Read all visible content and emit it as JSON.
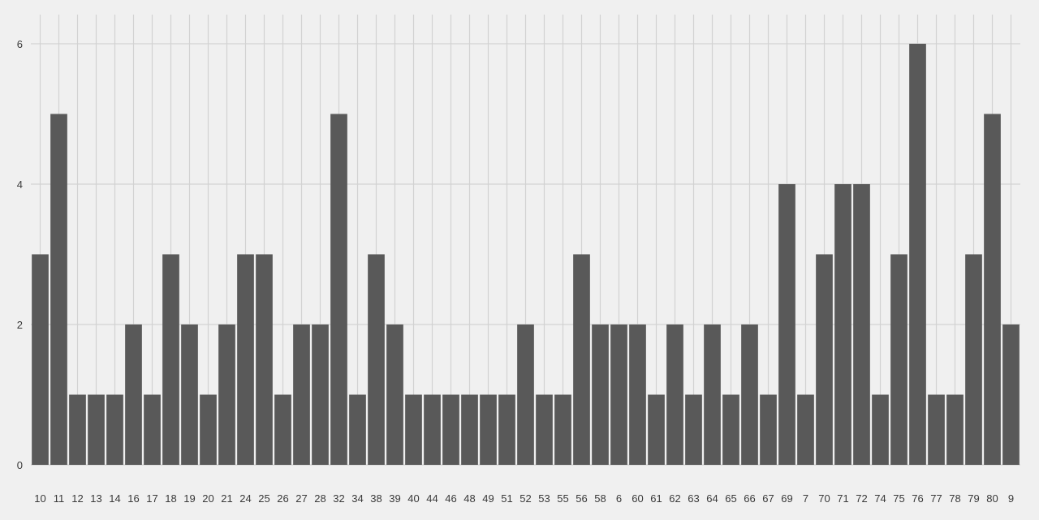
{
  "chart_data": {
    "type": "bar",
    "title": "",
    "xlabel": "",
    "ylabel": "",
    "categories": [
      "10",
      "11",
      "12",
      "13",
      "14",
      "16",
      "17",
      "18",
      "19",
      "20",
      "21",
      "24",
      "25",
      "26",
      "27",
      "28",
      "32",
      "34",
      "38",
      "39",
      "40",
      "44",
      "46",
      "48",
      "49",
      "51",
      "52",
      "53",
      "55",
      "56",
      "58",
      "6",
      "60",
      "61",
      "62",
      "63",
      "64",
      "65",
      "66",
      "67",
      "69",
      "7",
      "70",
      "71",
      "72",
      "74",
      "75",
      "76",
      "77",
      "78",
      "79",
      "80",
      "9"
    ],
    "values": [
      3,
      5,
      1,
      1,
      1,
      2,
      1,
      3,
      2,
      1,
      2,
      3,
      3,
      1,
      2,
      2,
      5,
      1,
      3,
      2,
      1,
      1,
      1,
      1,
      1,
      1,
      2,
      1,
      1,
      3,
      2,
      2,
      2,
      1,
      2,
      1,
      2,
      1,
      2,
      1,
      4,
      1,
      3,
      4,
      4,
      1,
      3,
      6,
      1,
      1,
      3,
      5,
      2
    ],
    "y_ticks": [
      "0",
      "2",
      "4",
      "6"
    ],
    "ylim": [
      0,
      6.3
    ],
    "grid": true,
    "colors": {
      "bar": "#595959",
      "grid": "#d2d2d2",
      "background": "#f0f0f0",
      "text": "#3a3a3a"
    }
  }
}
